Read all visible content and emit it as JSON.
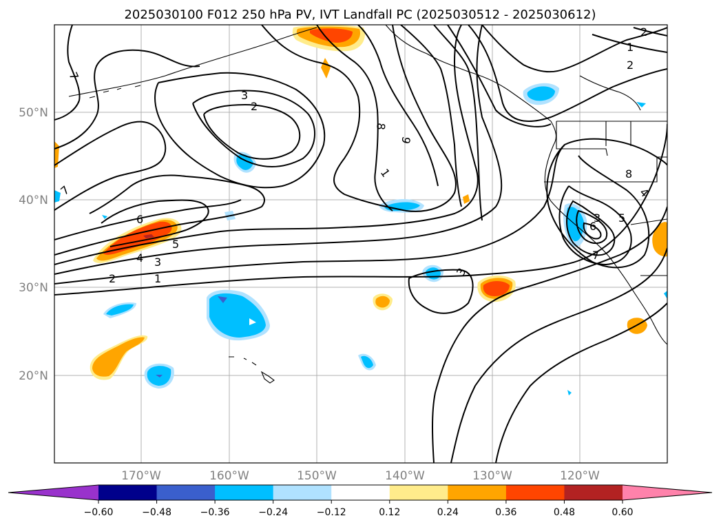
{
  "title": "2025030100 F012 250 hPa PV, IVT Landfall PC (2025030512 - 2025030612)",
  "lat_labels": [
    "50°N",
    "40°N",
    "30°N",
    "20°N"
  ],
  "lon_labels": [
    "170°W",
    "160°W",
    "150°W",
    "140°W",
    "130°W",
    "120°W"
  ],
  "colorbar": {
    "tick_labels": [
      "−0.60",
      "−0.48",
      "−0.36",
      "−0.24",
      "−0.12",
      "0.12",
      "0.24",
      "0.36",
      "0.48",
      "0.60"
    ],
    "colors": [
      "#9932cc",
      "#00008b",
      "#3a5fcd",
      "#00bfff",
      "#b0e2ff",
      "#ffffff",
      "#ffec8b",
      "#ffa500",
      "#ff4500",
      "#b22222",
      "#ff82ab"
    ]
  },
  "contour_labels": [
    "7",
    "3",
    "2",
    "6",
    "5",
    "4",
    "3",
    "2",
    "1",
    "7",
    "8",
    "6",
    "1",
    "3",
    "2",
    "1",
    "2",
    "8",
    "4",
    "3",
    "5",
    "6",
    "7"
  ],
  "map_extent": {
    "lon": [
      -180,
      -110
    ],
    "lat": [
      10,
      60
    ]
  }
}
